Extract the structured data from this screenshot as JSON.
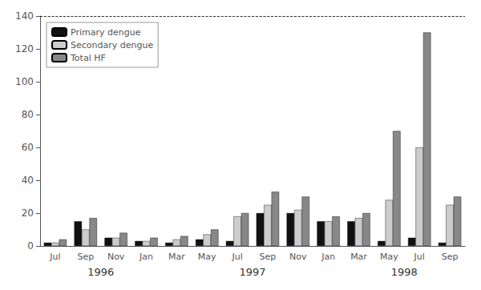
{
  "chart_data": {
    "type": "bar",
    "categories": [
      "Jul",
      "Sep",
      "Nov",
      "Jan",
      "Mar",
      "May",
      "Jul",
      "Sep",
      "Nov",
      "Jan",
      "Mar",
      "May",
      "Jul",
      "Sep"
    ],
    "series": [
      {
        "name": "Primary dengue",
        "color": "#111111",
        "values": [
          2,
          15,
          5,
          3,
          2,
          4,
          3,
          20,
          20,
          15,
          15,
          3,
          5,
          2
        ]
      },
      {
        "name": "Secondary dengue",
        "color": "#cccccc",
        "values": [
          2,
          10,
          5,
          3,
          4,
          7,
          18,
          25,
          22,
          15,
          17,
          28,
          60,
          25
        ]
      },
      {
        "name": "Total HF",
        "color": "#888888",
        "values": [
          4,
          17,
          8,
          5,
          6,
          10,
          20,
          33,
          30,
          18,
          20,
          70,
          130,
          30
        ]
      }
    ],
    "annotations": [
      {
        "text": "1996",
        "x": 1.5
      },
      {
        "text": "1997",
        "x": 6.5
      },
      {
        "text": "1998",
        "x": 11.5
      }
    ],
    "ylim": [
      0,
      140
    ],
    "yticks": [
      0,
      20,
      40,
      60,
      80,
      100,
      120,
      140
    ],
    "grid": false,
    "legend": "upper left"
  }
}
